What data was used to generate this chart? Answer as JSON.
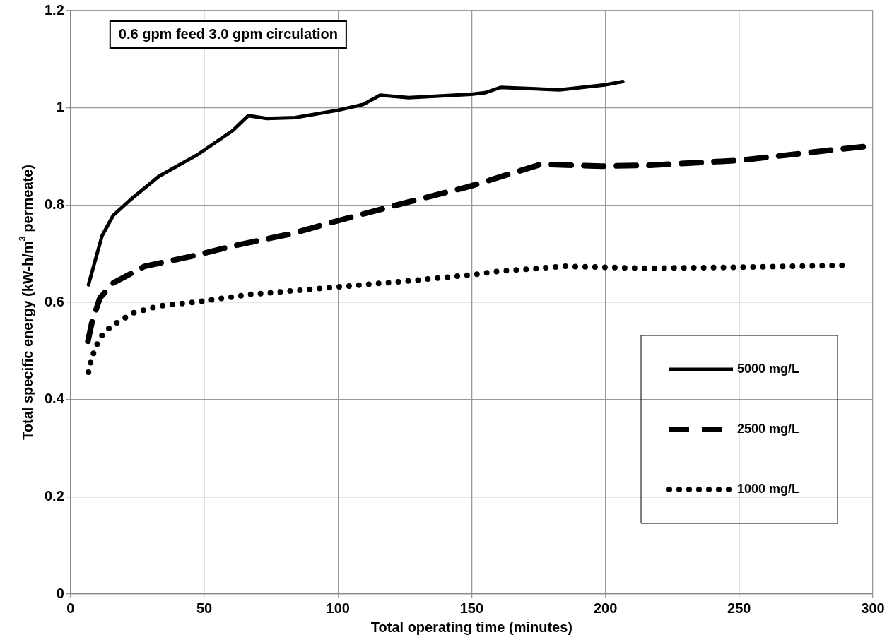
{
  "chart_data": {
    "type": "line",
    "xlabel": "Total operating time (minutes)",
    "ylabel": "Total specific energy (kW-h/m$^{3}$ permeate)",
    "annotations": [
      "0.6 gpm feed 3.0 gpm circulation"
    ],
    "xlim": [
      0,
      300
    ],
    "xticks": [
      0,
      50,
      100,
      150,
      200,
      250,
      300
    ],
    "ylim": [
      0,
      1.2
    ],
    "yticks": [
      0,
      0.2,
      0.4,
      0.6,
      0.8,
      1,
      1.2
    ],
    "grid": true,
    "legend": "bottom right",
    "marker": "none",
    "series": [
      {
        "name": "5000 mg/L",
        "color": "#000000",
        "line_style": "solid",
        "x": [
          6.7,
          11.8,
          16.0,
          22.4,
          33.0,
          47.9,
          60.6,
          66.5,
          73.4,
          84.0,
          99.9,
          109.4,
          115.8,
          126.4,
          149.8,
          155.0,
          160.8,
          182.8,
          199.7,
          206.5
        ],
        "values": [
          0.636,
          0.737,
          0.779,
          0.811,
          0.859,
          0.905,
          0.953,
          0.984,
          0.978,
          0.98,
          0.995,
          1.007,
          1.026,
          1.021,
          1.028,
          1.031,
          1.042,
          1.037,
          1.047,
          1.054
        ]
      },
      {
        "name": "2500 mg/L",
        "color": "#000000",
        "line_style": "dashed",
        "x": [
          6.5,
          8.1,
          11.0,
          16.0,
          27.7,
          44.7,
          61.7,
          81.8,
          98.8,
          115.8,
          131.7,
          149.0,
          164.8,
          176.0,
          198.6,
          216.6,
          250.4,
          284.2,
          296.6
        ],
        "values": [
          0.52,
          0.561,
          0.609,
          0.64,
          0.674,
          0.694,
          0.717,
          0.74,
          0.766,
          0.791,
          0.814,
          0.838,
          0.865,
          0.884,
          0.88,
          0.882,
          0.892,
          0.913,
          0.92
        ]
      },
      {
        "name": "1000 mg/L",
        "color": "#000000",
        "line_style": "dotted",
        "x": [
          6.7,
          7.8,
          9.4,
          11.6,
          15.0,
          23.3,
          32.8,
          47.5,
          67.0,
          96.7,
          126.4,
          150.8,
          160.3,
          185.1,
          214.4,
          249.3,
          288.7
        ],
        "values": [
          0.456,
          0.483,
          0.508,
          0.531,
          0.55,
          0.578,
          0.592,
          0.601,
          0.616,
          0.63,
          0.644,
          0.657,
          0.664,
          0.674,
          0.67,
          0.672,
          0.676
        ]
      }
    ]
  }
}
